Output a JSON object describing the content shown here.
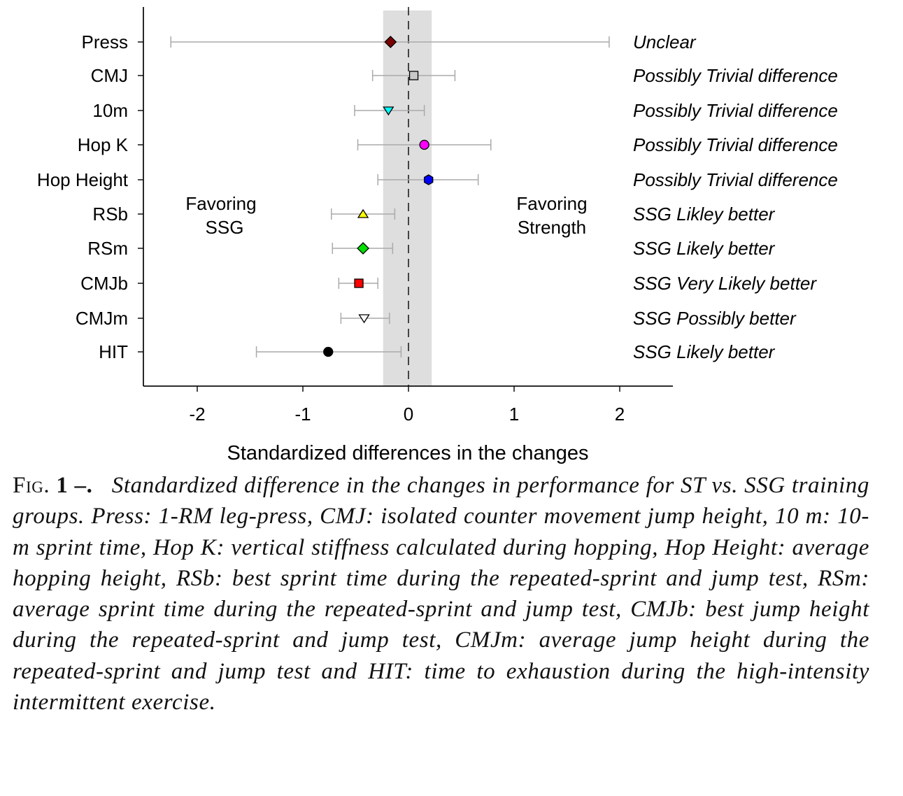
{
  "chart_data": {
    "type": "forest",
    "xlabel": "Standardized differences in the changes",
    "xlim": [
      -2.5,
      2.5
    ],
    "xticks": [
      -2,
      -1,
      0,
      1,
      2
    ],
    "trivial_band": [
      -0.24,
      0.22
    ],
    "reference_line": 0,
    "region_labels": {
      "left": [
        "Favoring",
        "SSG"
      ],
      "right": [
        "Favoring",
        "Strength"
      ]
    },
    "rows": [
      {
        "label": "Press",
        "value": -0.17,
        "lower": -2.25,
        "upper": 1.9,
        "marker": "diamond",
        "color": "#7a0000",
        "annotation": "Unclear"
      },
      {
        "label": "CMJ",
        "value": 0.05,
        "lower": -0.34,
        "upper": 0.44,
        "marker": "square",
        "color": "#c8c8c8",
        "annotation": "Possibly Trivial difference"
      },
      {
        "label": "10m",
        "value": -0.19,
        "lower": -0.51,
        "upper": 0.15,
        "marker": "triangle-down",
        "color": "#00ffff",
        "annotation": "Possibly Trivial difference"
      },
      {
        "label": "Hop K",
        "value": 0.15,
        "lower": -0.48,
        "upper": 0.78,
        "marker": "circle",
        "color": "#ff00ff",
        "annotation": "Possibly Trivial difference"
      },
      {
        "label": "Hop Height",
        "value": 0.19,
        "lower": -0.29,
        "upper": 0.66,
        "marker": "hexagon",
        "color": "#0000ff",
        "annotation": "Possibly Trivial difference"
      },
      {
        "label": "RSb",
        "value": -0.43,
        "lower": -0.73,
        "upper": -0.13,
        "marker": "triangle-up",
        "color": "#ffff00",
        "annotation": "SSG Likley better"
      },
      {
        "label": "RSm",
        "value": -0.43,
        "lower": -0.72,
        "upper": -0.15,
        "marker": "diamond",
        "color": "#00e000",
        "annotation": "SSG Likely better"
      },
      {
        "label": "CMJb",
        "value": -0.47,
        "lower": -0.66,
        "upper": -0.29,
        "marker": "square",
        "color": "#ff0000",
        "annotation": "SSG Very Likely  better"
      },
      {
        "label": "CMJm",
        "value": -0.42,
        "lower": -0.64,
        "upper": -0.18,
        "marker": "triangle-down",
        "color": "#ffffff",
        "annotation": "SSG Possibly better"
      },
      {
        "label": "HIT",
        "value": -0.76,
        "lower": -1.44,
        "upper": -0.07,
        "marker": "circle",
        "color": "#000000",
        "annotation": "SSG Likely  better"
      }
    ]
  },
  "caption": {
    "fig_label": "Fig.",
    "fig_number": "1 –.",
    "text": "Standardized difference in the changes in performance for ST vs. SSG training groups. Press: 1-RM leg-press, CMJ: isolated counter movement jump height, 10 m: 10-m sprint time, Hop K: vertical stiffness calculated during hopping, Hop Height: average hopping height, RSb: best sprint time during the repeated-sprint and jump test, RSm: average sprint time during the repeated-sprint and jump test, CMJb: best jump height during the repeated-sprint and jump test, CMJm: average jump height during the repeated-sprint and jump test and HIT: time to exhaustion during the high-intensity intermittent exercise."
  }
}
